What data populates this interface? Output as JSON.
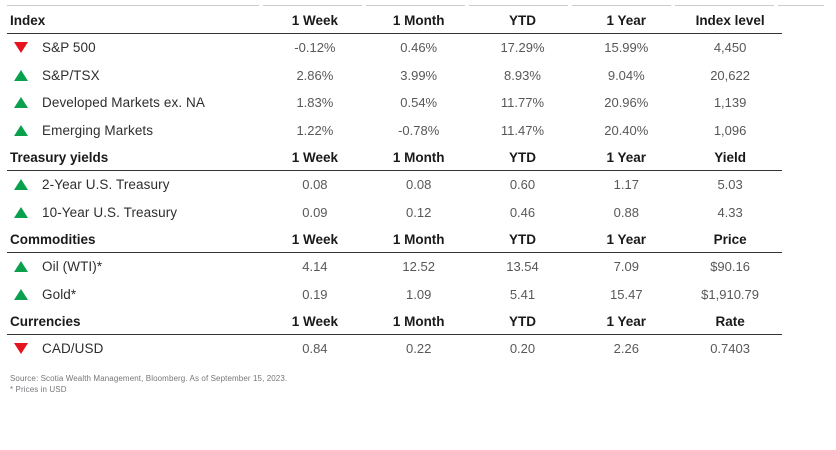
{
  "colors": {
    "up": "#0aa14e",
    "down": "#e6121d"
  },
  "chart_data": {
    "type": "table",
    "sections": [
      {
        "label": "Index",
        "columns": [
          "1 Week",
          "1 Month",
          "YTD",
          "1 Year",
          "Index level"
        ],
        "rows": [
          {
            "direction": "down",
            "name": "S&P 500",
            "values": [
              "-0.12%",
              "0.46%",
              "17.29%",
              "15.99%",
              "4,450"
            ]
          },
          {
            "direction": "up",
            "name": "S&P/TSX",
            "values": [
              "2.86%",
              "3.99%",
              "8.93%",
              "9.04%",
              "20,622"
            ]
          },
          {
            "direction": "up",
            "name": "Developed Markets ex. NA",
            "values": [
              "1.83%",
              "0.54%",
              "11.77%",
              "20.96%",
              "1,139"
            ]
          },
          {
            "direction": "up",
            "name": "Emerging Markets",
            "values": [
              "1.22%",
              "-0.78%",
              "11.47%",
              "20.40%",
              "1,096"
            ]
          }
        ]
      },
      {
        "label": "Treasury yields",
        "columns": [
          "1 Week",
          "1 Month",
          "YTD",
          "1 Year",
          "Yield"
        ],
        "rows": [
          {
            "direction": "up",
            "name": "2-Year U.S. Treasury",
            "values": [
              "0.08",
              "0.08",
              "0.60",
              "1.17",
              "5.03"
            ]
          },
          {
            "direction": "up",
            "name": "10-Year U.S. Treasury",
            "values": [
              "0.09",
              "0.12",
              "0.46",
              "0.88",
              "4.33"
            ]
          }
        ]
      },
      {
        "label": "Commodities",
        "columns": [
          "1 Week",
          "1 Month",
          "YTD",
          "1 Year",
          "Price"
        ],
        "rows": [
          {
            "direction": "up",
            "name": "Oil (WTI)*",
            "values": [
              "4.14",
              "12.52",
              "13.54",
              "7.09",
              "$90.16"
            ]
          },
          {
            "direction": "up",
            "name": "Gold*",
            "values": [
              "0.19",
              "1.09",
              "5.41",
              "15.47",
              "$1,910.79"
            ]
          }
        ]
      },
      {
        "label": "Currencies",
        "columns": [
          "1 Week",
          "1 Month",
          "YTD",
          "1 Year",
          "Rate"
        ],
        "rows": [
          {
            "direction": "down",
            "name": "CAD/USD",
            "values": [
              "0.84",
              "0.22",
              "0.20",
              "2.26",
              "0.7403"
            ]
          }
        ]
      }
    ],
    "footnotes": [
      "Source: Scotia Wealth Management, Bloomberg. As of September 15, 2023.",
      "* Prices in USD"
    ]
  }
}
